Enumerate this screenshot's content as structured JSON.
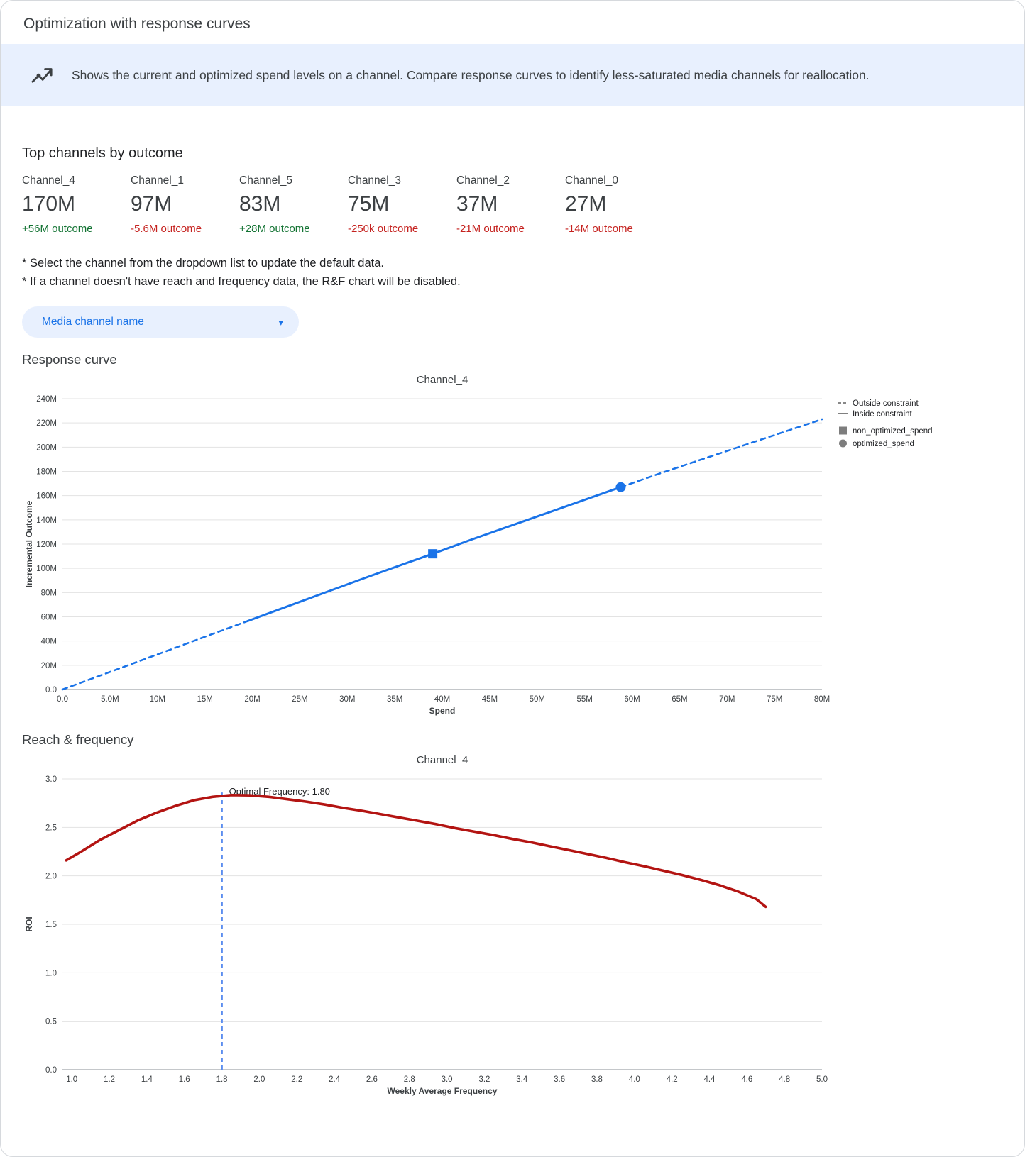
{
  "page": {
    "title": "Optimization with response curves",
    "banner": {
      "text": "Shows the current and optimized spend levels on a channel. Compare response curves to identify less-saturated media channels for reallocation."
    }
  },
  "top_channels": {
    "heading": "Top channels by outcome",
    "channels": [
      {
        "name": "Channel_4",
        "value": "170M",
        "outcome": "+56M outcome",
        "direction": "up"
      },
      {
        "name": "Channel_1",
        "value": "97M",
        "outcome": "-5.6M outcome",
        "direction": "down"
      },
      {
        "name": "Channel_5",
        "value": "83M",
        "outcome": "+28M outcome",
        "direction": "up"
      },
      {
        "name": "Channel_3",
        "value": "75M",
        "outcome": "-250k outcome",
        "direction": "down"
      },
      {
        "name": "Channel_2",
        "value": "37M",
        "outcome": "-21M outcome",
        "direction": "down"
      },
      {
        "name": "Channel_0",
        "value": "27M",
        "outcome": "-14M outcome",
        "direction": "down"
      }
    ]
  },
  "notes": [
    "* Select the channel from the dropdown list to update the default data.",
    "* If a channel doesn't have reach and frequency data, the R&F chart will be disabled."
  ],
  "dropdown": {
    "label": "Media channel name"
  },
  "sections": {
    "response_curve": "Response curve",
    "reach_frequency": "Reach & frequency"
  },
  "colors": {
    "accent_blue": "#1a73e8",
    "banner_bg": "#e8f0fe",
    "positive_green": "#137333",
    "negative_red": "#c5221f",
    "curve_red": "#b31412",
    "vline_blue": "#5b8def"
  },
  "chart_data": [
    {
      "type": "line",
      "title": "Channel_4",
      "xlabel": "Spend",
      "ylabel": "Incremental Outcome",
      "xlim": [
        0,
        80
      ],
      "ylim": [
        0,
        240
      ],
      "grid": "horizontal",
      "legend_position": "right",
      "xticks": {
        "values": [
          0,
          5,
          10,
          15,
          20,
          25,
          30,
          35,
          40,
          45,
          50,
          55,
          60,
          65,
          70,
          75,
          80
        ],
        "labels": [
          "0.0",
          "5.0M",
          "10M",
          "15M",
          "20M",
          "25M",
          "30M",
          "35M",
          "40M",
          "45M",
          "50M",
          "55M",
          "60M",
          "65M",
          "70M",
          "75M",
          "80M"
        ]
      },
      "yticks": {
        "values": [
          0,
          20,
          40,
          60,
          80,
          100,
          120,
          140,
          160,
          180,
          200,
          220,
          240
        ],
        "labels": [
          "0.0",
          "20M",
          "40M",
          "60M",
          "80M",
          "100M",
          "120M",
          "140M",
          "160M",
          "180M",
          "200M",
          "220M",
          "240M"
        ]
      },
      "series": [
        {
          "name": "outside-constraint-lower",
          "legend": "Outside constraint",
          "style": "dashed",
          "color": "#1a73e8",
          "width": 2.6,
          "x": [
            0,
            4,
            8,
            12,
            16,
            19.5
          ],
          "y": [
            0,
            11.6,
            23.2,
            34.8,
            46.4,
            56.5
          ]
        },
        {
          "name": "inside-constraint",
          "legend": "Inside constraint",
          "style": "solid",
          "color": "#1a73e8",
          "width": 3,
          "x": [
            19.5,
            24,
            28,
            32,
            36,
            39,
            43,
            47,
            51,
            55,
            58.8
          ],
          "y": [
            56.5,
            69.5,
            81,
            92.5,
            103.7,
            112,
            123.5,
            134.5,
            145.5,
            156.5,
            167
          ]
        },
        {
          "name": "outside-constraint-upper",
          "legend": "Outside constraint",
          "style": "dashed",
          "color": "#1a73e8",
          "width": 2.6,
          "x": [
            58.8,
            63,
            67,
            71,
            75,
            80
          ],
          "y": [
            167,
            178.5,
            189,
            199.5,
            210,
            223
          ]
        }
      ],
      "markers": [
        {
          "name": "non_optimized_spend",
          "shape": "square",
          "x": 39,
          "y": 112,
          "color": "#1a73e8",
          "size": 13
        },
        {
          "name": "optimized_spend",
          "shape": "circle",
          "x": 58.8,
          "y": 167,
          "color": "#1a73e8",
          "size": 7
        }
      ],
      "legend": [
        {
          "label": "Outside constraint",
          "glyph": "dashed-line"
        },
        {
          "label": "Inside constraint",
          "glyph": "solid-line"
        },
        {
          "label": "non_optimized_spend",
          "glyph": "square"
        },
        {
          "label": "optimized_spend",
          "glyph": "circle"
        }
      ]
    },
    {
      "type": "line",
      "title": "Channel_4",
      "xlabel": "Weekly Average Frequency",
      "ylabel": "ROI",
      "xlim": [
        0.95,
        5.0
      ],
      "ylim": [
        0,
        3
      ],
      "grid": "horizontal",
      "xticks": {
        "values": [
          1.0,
          1.2,
          1.4,
          1.6,
          1.8,
          2.0,
          2.2,
          2.4,
          2.6,
          2.8,
          3.0,
          3.2,
          3.4,
          3.6,
          3.8,
          4.0,
          4.2,
          4.4,
          4.6,
          4.8,
          5.0
        ],
        "labels": [
          "1.0",
          "1.2",
          "1.4",
          "1.6",
          "1.8",
          "2.0",
          "2.2",
          "2.4",
          "2.6",
          "2.8",
          "3.0",
          "3.2",
          "3.4",
          "3.6",
          "3.8",
          "4.0",
          "4.2",
          "4.4",
          "4.6",
          "4.8",
          "5.0"
        ]
      },
      "yticks": {
        "values": [
          0,
          0.5,
          1,
          1.5,
          2,
          2.5,
          3
        ],
        "labels": [
          "0.0",
          "0.5",
          "1.0",
          "1.5",
          "2.0",
          "2.5",
          "3.0"
        ]
      },
      "series": [
        {
          "name": "roi-curve",
          "legend": "ROI",
          "style": "solid",
          "color": "#b31412",
          "width": 3.6,
          "x": [
            0.97,
            1.05,
            1.15,
            1.25,
            1.35,
            1.45,
            1.55,
            1.65,
            1.75,
            1.85,
            1.95,
            2.05,
            2.15,
            2.25,
            2.35,
            2.45,
            2.55,
            2.65,
            2.75,
            2.85,
            2.95,
            3.05,
            3.15,
            3.25,
            3.35,
            3.45,
            3.55,
            3.65,
            3.75,
            3.85,
            3.95,
            4.05,
            4.15,
            4.25,
            4.35,
            4.45,
            4.55,
            4.65,
            4.7
          ],
          "y": [
            2.16,
            2.25,
            2.37,
            2.47,
            2.57,
            2.65,
            2.72,
            2.78,
            2.815,
            2.833,
            2.83,
            2.815,
            2.79,
            2.765,
            2.735,
            2.7,
            2.67,
            2.635,
            2.6,
            2.565,
            2.53,
            2.49,
            2.455,
            2.42,
            2.38,
            2.345,
            2.305,
            2.265,
            2.225,
            2.185,
            2.14,
            2.1,
            2.055,
            2.01,
            1.96,
            1.905,
            1.84,
            1.76,
            1.68
          ]
        }
      ],
      "vline": {
        "x": 1.8,
        "top": 2.86,
        "style": "dashed",
        "color": "#5b8def",
        "label": "Optimal Frequency: 1.80"
      }
    }
  ]
}
